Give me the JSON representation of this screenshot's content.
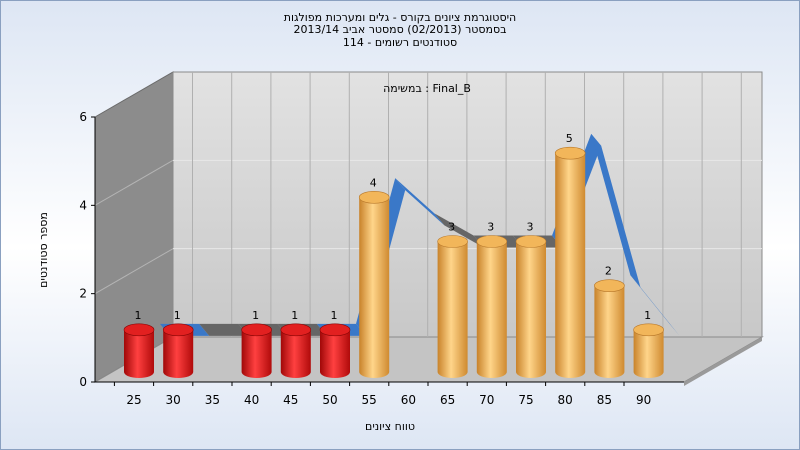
{
  "header": {
    "line1": "היסטוגרמת ציונים בקורס - גלים ומערכות מפולגות",
    "line2": "בסמסטר  (02/2013)  סמסטר אביב 2013/14",
    "line3": "סטודנטים רשומים - 114"
  },
  "chart_data": {
    "type": "bar",
    "subtitle": "במשימה : Final_B",
    "xlabel": "טווח ציונים",
    "ylabel": "מספר סטודנטים",
    "ylim": [
      0,
      6
    ],
    "yticks": [
      "0",
      "2",
      "4",
      "6"
    ],
    "x_ticks": [
      "25",
      "30",
      "35",
      "40",
      "45",
      "50",
      "55",
      "60",
      "65",
      "70",
      "75",
      "80",
      "85",
      "90"
    ],
    "bars": [
      {
        "x": "25",
        "value": 1,
        "label": "1",
        "group": "fail"
      },
      {
        "x": "30",
        "value": 1,
        "label": "1",
        "group": "fail"
      },
      {
        "x": "40",
        "value": 1,
        "label": "1",
        "group": "fail"
      },
      {
        "x": "45",
        "value": 1,
        "label": "1",
        "group": "fail"
      },
      {
        "x": "50",
        "value": 1,
        "label": "1",
        "group": "fail"
      },
      {
        "x": "55",
        "value": 4,
        "label": "4",
        "group": "pass"
      },
      {
        "x": "65",
        "value": 3,
        "label": "3",
        "group": "pass"
      },
      {
        "x": "70",
        "value": 3,
        "label": "3",
        "group": "pass"
      },
      {
        "x": "75",
        "value": 3,
        "label": "3",
        "group": "pass"
      },
      {
        "x": "80",
        "value": 5,
        "label": "5",
        "group": "pass"
      },
      {
        "x": "85",
        "value": 2,
        "label": "2",
        "group": "pass"
      },
      {
        "x": "90",
        "value": 1,
        "label": "1",
        "group": "pass"
      }
    ],
    "trend_ribbon": [
      1,
      1,
      1,
      1,
      1,
      1,
      4.3,
      3.5,
      3.0,
      3.0,
      3.0,
      5.3,
      2.1,
      1.0
    ],
    "grid": true,
    "colors": {
      "fail": "#e01818",
      "pass": "#f0b050",
      "ribbon": "#3a78c8",
      "ribbon_back": "#666666",
      "back_wall": "#cfcfcf",
      "side_wall": "#8c8c8c",
      "floor": "#c4c4c4"
    }
  }
}
